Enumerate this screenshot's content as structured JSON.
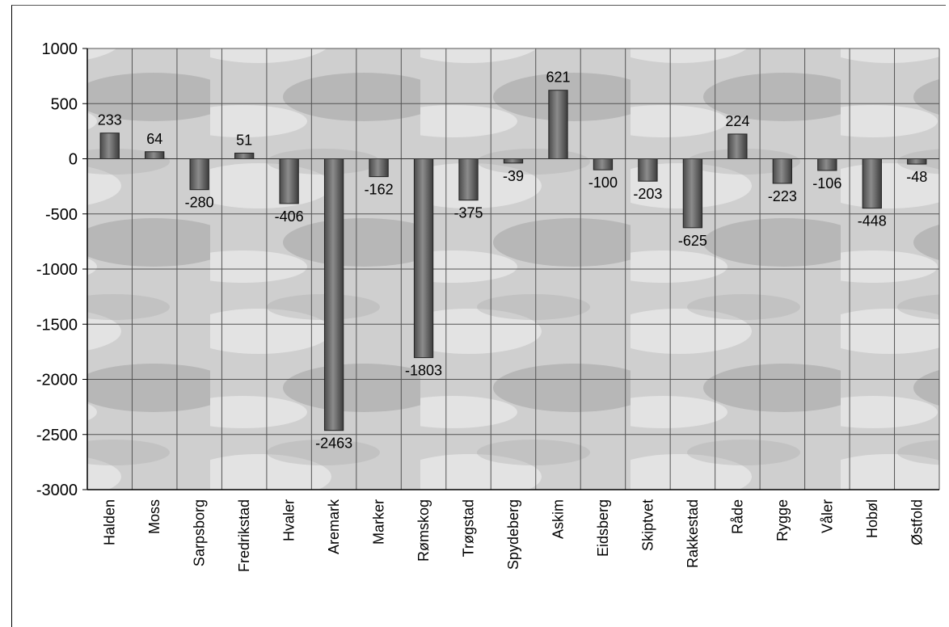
{
  "chart_data": {
    "type": "bar",
    "title": "",
    "xlabel": "",
    "ylabel": "",
    "ylim": [
      -3000,
      1000
    ],
    "yticks": [
      "1000",
      "500",
      "0",
      "-500",
      "-1000",
      "-1500",
      "-2000",
      "-2500",
      "-3000"
    ],
    "grid": true,
    "categories": [
      "Halden",
      "Moss",
      "Sarpsborg",
      "Fredrikstad",
      "Hvaler",
      "Aremark",
      "Marker",
      "Rømskog",
      "Trøgstad",
      "Spydeberg",
      "Askim",
      "Eidsberg",
      "Skiptvet",
      "Rakkestad",
      "Råde",
      "Rygge",
      "Våler",
      "Hobøl",
      "Østfold"
    ],
    "values": [
      233,
      64,
      -280,
      51,
      -406,
      -2463,
      -162,
      -1803,
      -375,
      -39,
      621,
      -100,
      -203,
      -625,
      224,
      -223,
      -106,
      -448,
      -48
    ],
    "data_labels": [
      "233",
      "64",
      "-280",
      "51",
      "-406",
      "-2463",
      "-162",
      "-1803",
      "-375",
      "-39",
      "621",
      "-100",
      "-203",
      "-625",
      "224",
      "-223",
      "-106",
      "-448",
      "-48"
    ],
    "colors": {
      "bar": "#5e5e5e",
      "bar_highlight": "#8a8a8a",
      "plot_bg": "#c9c9c9",
      "grid": "#555555"
    }
  }
}
